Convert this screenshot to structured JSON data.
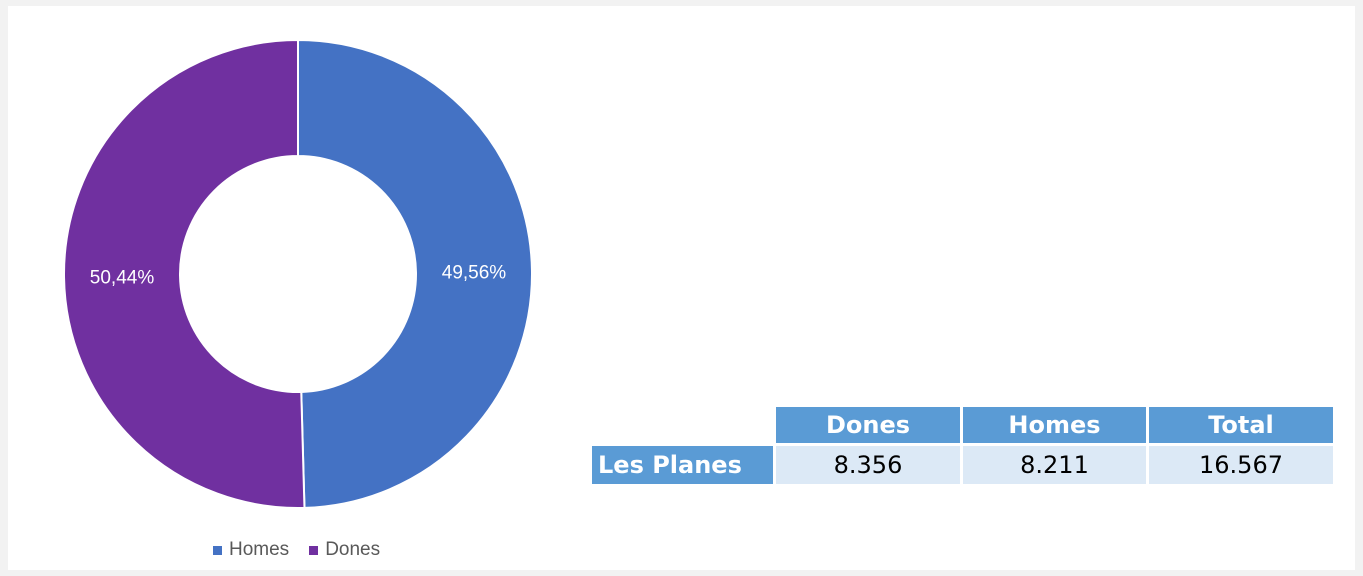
{
  "chart_data": {
    "type": "pie",
    "subtype": "donut",
    "title": "",
    "slices": [
      {
        "label": "Homes",
        "value": 49.56,
        "display": "49,56%",
        "color": "#4472c4"
      },
      {
        "label": "Dones",
        "value": 50.44,
        "display": "50,44%",
        "color": "#7030a0"
      }
    ],
    "legend": {
      "position": "bottom",
      "entries": [
        {
          "label": "Homes",
          "color": "#4472c4"
        },
        {
          "label": "Dones",
          "color": "#7030a0"
        }
      ]
    }
  },
  "table": {
    "headers": [
      "Dones",
      "Homes",
      "Total"
    ],
    "rows": [
      {
        "label": "Les Planes",
        "values": [
          "8.356",
          "8.211",
          "16.567"
        ]
      }
    ],
    "header_color": "#5a9bd5",
    "cell_color": "#dce9f6"
  }
}
